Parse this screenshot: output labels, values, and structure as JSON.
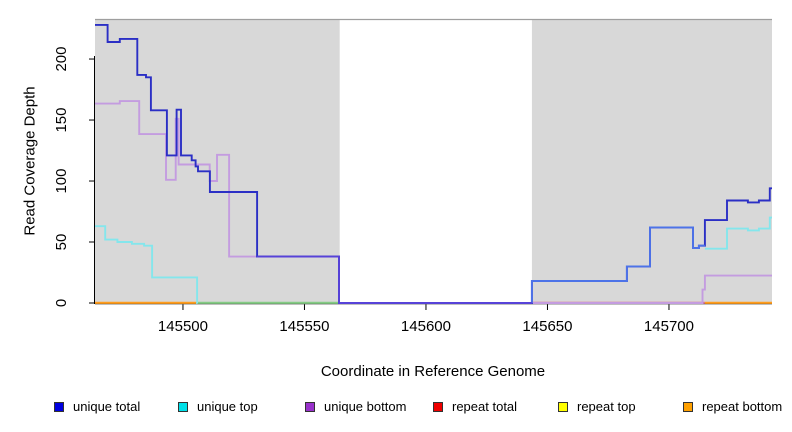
{
  "chart_data": {
    "type": "line",
    "subtype": "step-coverage-plot",
    "title": "",
    "xlabel": "Coordinate in Reference Genome",
    "ylabel": "Read Coverage Depth",
    "xlim": [
      145463.8,
      145742.4
    ],
    "ylim": [
      0,
      232
    ],
    "grid": false,
    "legend_position": "bottom",
    "x_ticks": [
      {
        "value": 145500,
        "label": "145500"
      },
      {
        "value": 145550,
        "label": "145550"
      },
      {
        "value": 145600,
        "label": "145600"
      },
      {
        "value": 145650,
        "label": "145650"
      },
      {
        "value": 145700,
        "label": "145700"
      }
    ],
    "y_ticks": [
      {
        "value": 0,
        "label": "0"
      },
      {
        "value": 50,
        "label": "50"
      },
      {
        "value": 100,
        "label": "100"
      },
      {
        "value": 150,
        "label": "150"
      },
      {
        "value": 200,
        "label": "200"
      }
    ],
    "shaded_regions": [
      {
        "name": "repeat-region-left",
        "x1": 145463.8,
        "x2": 145564.5,
        "color": "#D8D8D8"
      },
      {
        "name": "repeat-region-right",
        "x1": 145643.6,
        "x2": 145742.4,
        "color": "#D8D8D8"
      }
    ],
    "top_border_color": "#9E9E9E",
    "baseline_segments": [
      {
        "name": "repeat-bottom-baseline-left",
        "color": "#FF9D1E",
        "x1": 145463.8,
        "x2": 145505.8
      },
      {
        "name": "unique-top-repeat-top-baseline",
        "color": "#85CB85",
        "x1": 145505.8,
        "x2": 145564.5
      },
      {
        "name": "repeat-total-baseline",
        "color": "#D97090",
        "x1": 145643.6,
        "x2": 145714.8
      },
      {
        "name": "repeat-bottom-baseline-right",
        "color": "#FF9D1E",
        "x1": 145714.8,
        "x2": 145742.4
      }
    ],
    "series": [
      {
        "name": "unique-bottom",
        "color": "#C49CE0",
        "points": [
          [
            145463.8,
            163.5
          ],
          [
            145474,
            165.5
          ],
          [
            145482,
            138.5
          ],
          [
            145493,
            101
          ],
          [
            145497,
            151
          ],
          [
            145498.2,
            113.5
          ],
          [
            145511,
            100
          ],
          [
            145514,
            121.5
          ],
          [
            145519,
            38
          ],
          [
            145564.2,
            0
          ],
          [
            145713.8,
            11
          ],
          [
            145714.8,
            22.5
          ]
        ],
        "end": 145742.4
      },
      {
        "name": "unique-total",
        "color": "#2B2FC5",
        "points": [
          [
            145463.8,
            228
          ],
          [
            145469,
            214
          ],
          [
            145474,
            216.5
          ],
          [
            145481.2,
            187
          ],
          [
            145484.8,
            185
          ],
          [
            145486.8,
            158
          ],
          [
            145493.4,
            121
          ],
          [
            145497.4,
            158.5
          ],
          [
            145499.2,
            121
          ],
          [
            145503.6,
            117
          ],
          [
            145505.2,
            112
          ],
          [
            145506.2,
            108
          ],
          [
            145511.1,
            91
          ],
          [
            145530.5,
            38
          ],
          [
            145564.2,
            0
          ],
          [
            145643.6,
            18
          ],
          [
            145682.7,
            30
          ],
          [
            145692.2,
            62
          ],
          [
            145709.9,
            45
          ],
          [
            145712.3,
            47
          ],
          [
            145714.8,
            68
          ],
          [
            145723.9,
            84
          ],
          [
            145732.5,
            82.5
          ],
          [
            145737,
            84
          ],
          [
            145741.5,
            94
          ]
        ],
        "end": 145742.4
      },
      {
        "name": "unique-total-unique-top-overlap",
        "color": "#4D73E8",
        "points": [
          [
            145643.6,
            0
          ],
          [
            145643.6,
            18
          ],
          [
            145682.7,
            30
          ],
          [
            145692.2,
            62
          ],
          [
            145709.9,
            45
          ],
          [
            145712.3,
            47
          ]
        ],
        "end": 145714.8
      },
      {
        "name": "unique-total-unique-bottom-overlap",
        "color": "#5742D8",
        "points": [
          [
            145530.5,
            38
          ],
          [
            145564.2,
            0
          ]
        ],
        "end": 145643.6
      },
      {
        "name": "unique-top-left",
        "color": "#84E6EC",
        "points": [
          [
            145463.8,
            63
          ],
          [
            145468,
            52
          ],
          [
            145473,
            50
          ],
          [
            145479,
            48.5
          ],
          [
            145484,
            47
          ],
          [
            145487.3,
            21
          ],
          [
            145505.8,
            0
          ]
        ],
        "end": 145506
      },
      {
        "name": "unique-top-right",
        "color": "#84E6EC",
        "points": [
          [
            145714.8,
            44.5
          ],
          [
            145723.9,
            61
          ],
          [
            145732.5,
            59.5
          ],
          [
            145737,
            61
          ],
          [
            145741.5,
            70
          ]
        ],
        "end": 145742.4
      }
    ],
    "legend": [
      {
        "label": "unique total",
        "color": "#0000E0"
      },
      {
        "label": "unique top",
        "color": "#00E0E8"
      },
      {
        "label": "unique bottom",
        "color": "#9932CC"
      },
      {
        "label": "repeat total",
        "color": "#EE0000"
      },
      {
        "label": "repeat top",
        "color": "#FFFF00"
      },
      {
        "label": "repeat bottom",
        "color": "#FFA000"
      }
    ]
  }
}
